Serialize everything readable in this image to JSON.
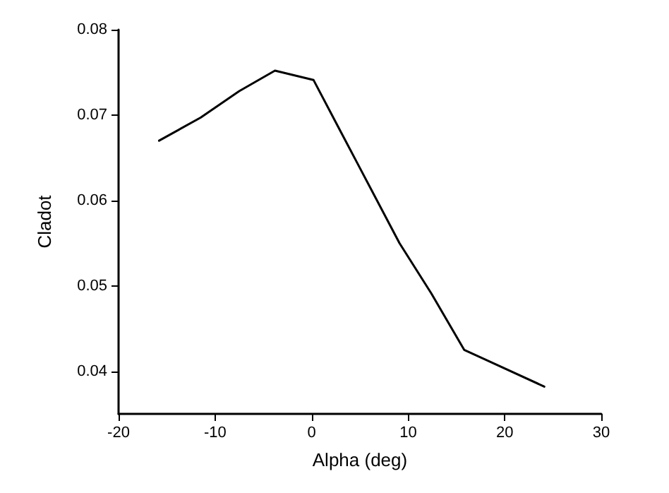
{
  "chart_data": {
    "type": "line",
    "xlabel": "Alpha (deg)",
    "ylabel": "Cladot",
    "x": [
      -15.8,
      -11.5,
      -7.5,
      -3.8,
      0.2,
      2.9,
      9.1,
      12.4,
      15.8,
      24.1
    ],
    "series": [
      {
        "color": "#000000",
        "values": [
          0.067,
          0.0697,
          0.0728,
          0.0752,
          0.0741,
          0.0683,
          0.055,
          0.0491,
          0.0425,
          0.0382
        ]
      }
    ],
    "xlim": [
      -20,
      30
    ],
    "xticks": [
      -20,
      -10,
      0,
      10,
      20,
      30
    ],
    "ylim": [
      0.035,
      0.08
    ],
    "yticks": [
      0.04,
      0.05,
      0.06,
      0.07,
      0.08
    ],
    "marker": "none",
    "line_style": "solid"
  }
}
